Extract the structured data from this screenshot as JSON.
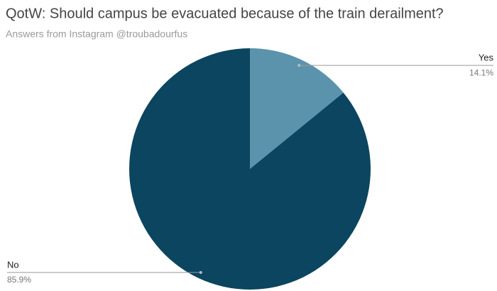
{
  "chart_data": {
    "type": "pie",
    "title": "QotW: Should campus be evacuated because of the train derailment?",
    "subtitle": "Answers from Instagram @troubadourfus",
    "categories": [
      "Yes",
      "No"
    ],
    "values": [
      14.1,
      85.9
    ],
    "value_labels": [
      "14.1%",
      "85.9%"
    ],
    "colors": [
      "#5b93ad",
      "#0b455f"
    ]
  }
}
